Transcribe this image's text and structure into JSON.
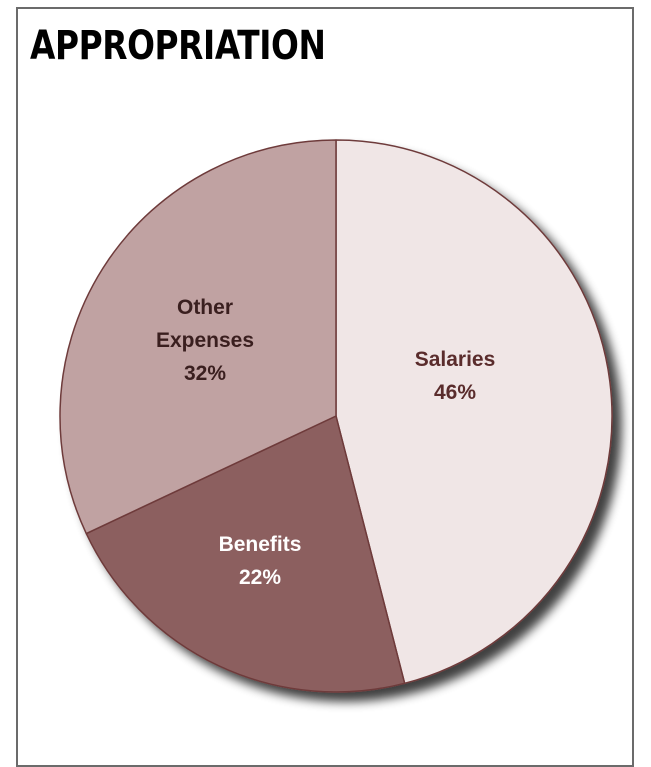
{
  "title": "APPROPRIATION",
  "chart_data": {
    "type": "pie",
    "title": "APPROPRIATION",
    "slices": [
      {
        "label": "Salaries",
        "value": 46,
        "value_label": "46%",
        "color": "#f0e6e6",
        "label_color": "#5a2c2c"
      },
      {
        "label": "Benefits",
        "value": 22,
        "value_label": "22%",
        "color": "#8c5f5f",
        "label_color": "#ffffff"
      },
      {
        "label": "Other Expenses",
        "value": 32,
        "value_label": "32%",
        "color": "#c0a2a2",
        "label_color": "#3a1f1f"
      }
    ],
    "start_angle_deg": 0,
    "direction": "clockwise",
    "edge_color": "#6e3a3a"
  }
}
